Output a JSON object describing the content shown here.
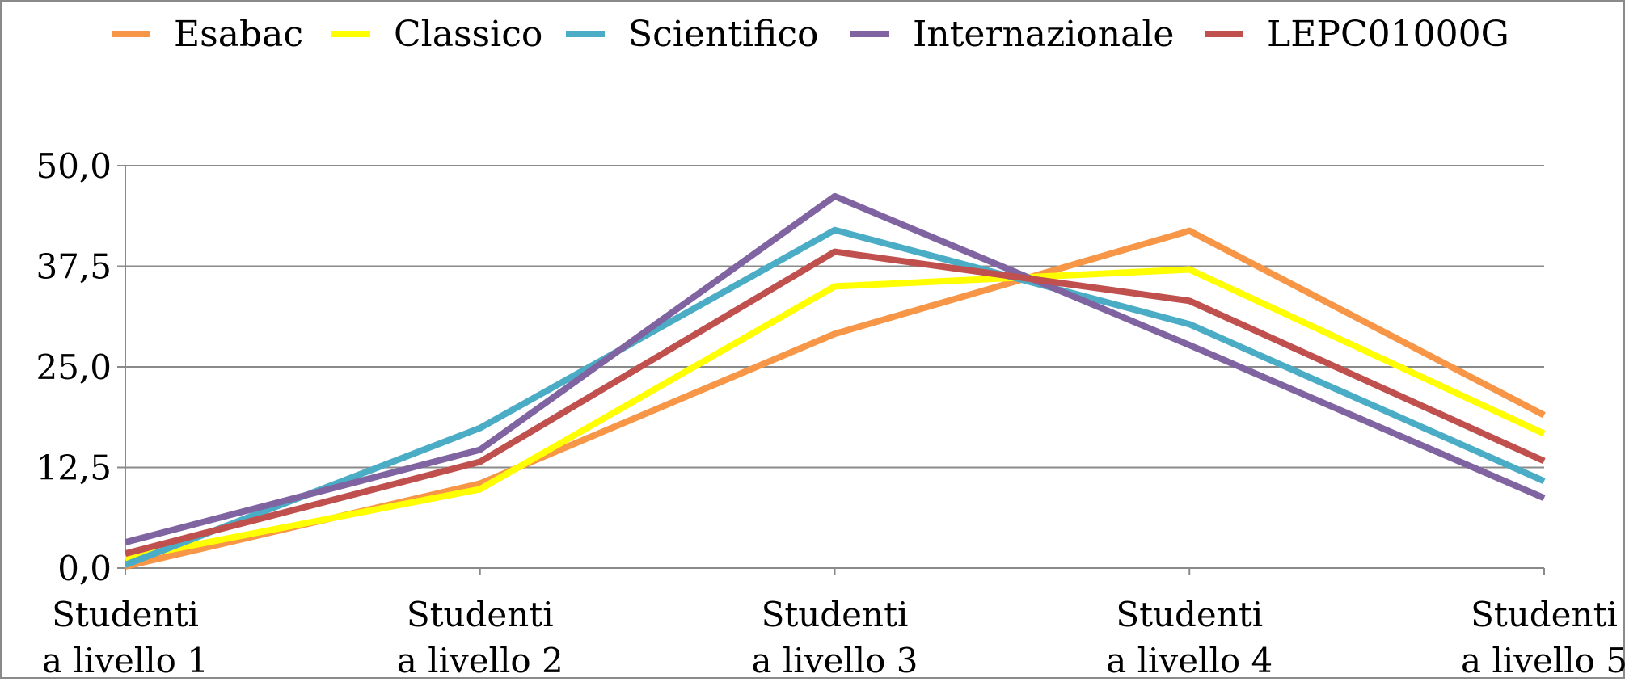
{
  "chart_data": {
    "type": "line",
    "categories": [
      [
        "Studenti",
        "a livello 1"
      ],
      [
        "Studenti",
        "a livello 2"
      ],
      [
        "Studenti",
        "a livello 3"
      ],
      [
        "Studenti",
        "a livello 4"
      ],
      [
        "Studenti",
        "a livello 5"
      ]
    ],
    "series": [
      {
        "name": "Esabac",
        "color": "#F79646",
        "values": [
          0.2,
          10.5,
          29.1,
          41.9,
          19.0
        ]
      },
      {
        "name": "Classico",
        "color": "#FFFF00",
        "values": [
          1.2,
          9.8,
          35.0,
          37.1,
          16.7
        ]
      },
      {
        "name": "Scientifico",
        "color": "#4BACC6",
        "values": [
          0.4,
          17.4,
          42.0,
          30.3,
          10.8
        ]
      },
      {
        "name": "Internazionale",
        "color": "#8064A2",
        "values": [
          3.2,
          14.7,
          46.2,
          27.7,
          8.7
        ]
      },
      {
        "name": "LEPC01000G",
        "color": "#C0504D",
        "values": [
          1.8,
          13.2,
          39.3,
          33.2,
          13.3
        ]
      }
    ],
    "ylim": [
      0,
      50
    ],
    "yticks": [
      "0,0",
      "12,5",
      "25,0",
      "37,5",
      "50,0"
    ],
    "title": "",
    "xlabel": "",
    "ylabel": "",
    "grid": true,
    "legend_position": "top"
  }
}
